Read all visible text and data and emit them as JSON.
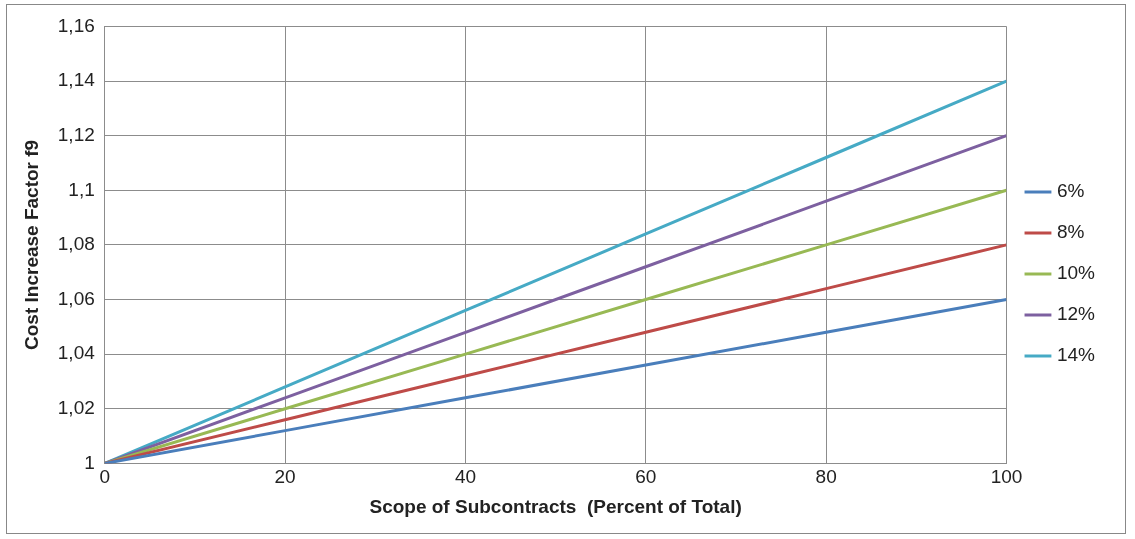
{
  "chart_data": {
    "type": "line",
    "xlabel": "Scope of Subcontracts  (Percent of Total)",
    "ylabel": "Cost Increase Factor f9",
    "x": [
      0,
      20,
      40,
      60,
      80,
      100
    ],
    "series": [
      {
        "name": "6%",
        "color": "#4a7ebb",
        "values": [
          1,
          1.012,
          1.024,
          1.036,
          1.048,
          1.06
        ]
      },
      {
        "name": "8%",
        "color": "#be4b48",
        "values": [
          1,
          1.016,
          1.032,
          1.048,
          1.064,
          1.08
        ]
      },
      {
        "name": "10%",
        "color": "#98b954",
        "values": [
          1,
          1.02,
          1.04,
          1.06,
          1.08,
          1.1
        ]
      },
      {
        "name": "12%",
        "color": "#7d60a0",
        "values": [
          1,
          1.024,
          1.048,
          1.072,
          1.096,
          1.12
        ]
      },
      {
        "name": "14%",
        "color": "#46aac5",
        "values": [
          1,
          1.028,
          1.056,
          1.084,
          1.112,
          1.14
        ]
      }
    ],
    "xlim": [
      0,
      100
    ],
    "xticks": [
      0,
      20,
      40,
      60,
      80,
      100
    ],
    "ylim": [
      1,
      1.16
    ],
    "yticks": [
      1,
      {
        "value": 1.02,
        "label": "1,02"
      },
      {
        "value": 1.04,
        "label": "1,04"
      },
      {
        "value": 1.06,
        "label": "1,06"
      },
      {
        "value": 1.08,
        "label": "1,08"
      },
      {
        "value": 1.1,
        "label": "1,1"
      },
      {
        "value": 1.12,
        "label": "1,12"
      },
      {
        "value": 1.14,
        "label": "1,14"
      },
      {
        "value": 1.16,
        "label": "1,16"
      }
    ],
    "grid": true,
    "legend": "right",
    "marker": "none",
    "line_style": "solid"
  }
}
